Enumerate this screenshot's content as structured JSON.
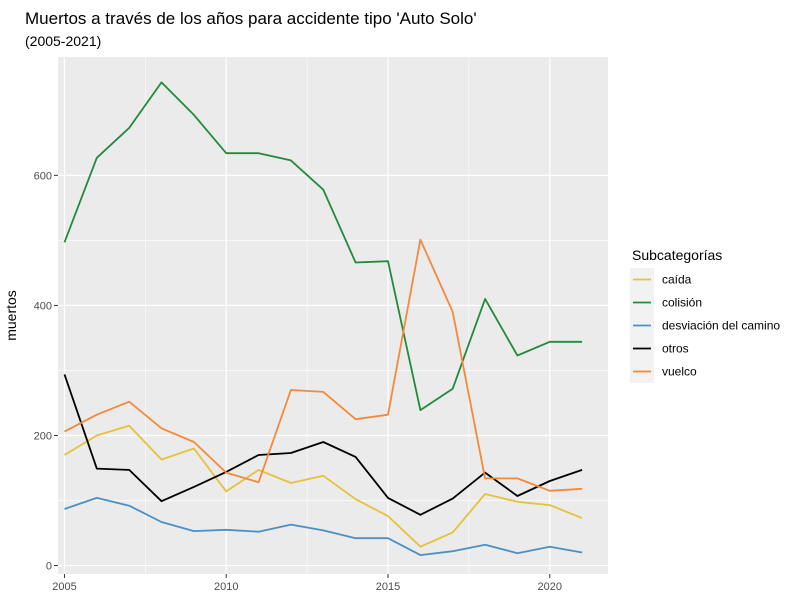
{
  "chart_data": {
    "type": "line",
    "title": "Muertos a través de los años para accidente tipo 'Auto Solo'",
    "subtitle": "(2005-2021)",
    "xlabel": "",
    "ylabel": "muertos",
    "x": [
      2005,
      2006,
      2007,
      2008,
      2009,
      2010,
      2011,
      2012,
      2013,
      2014,
      2015,
      2016,
      2017,
      2018,
      2019,
      2020,
      2021
    ],
    "xlim": [
      2004.8,
      2021.8
    ],
    "ylim": [
      -13,
      782
    ],
    "xticks": [
      2005,
      2010,
      2015,
      2020
    ],
    "yticks": [
      0,
      200,
      400,
      600
    ],
    "grid": true,
    "background": "#ebebeb",
    "legend": {
      "title": "Subcategorías",
      "position": "right"
    },
    "series": [
      {
        "name": "caída",
        "color": "#e6c13a",
        "values": [
          170,
          200,
          215,
          163,
          180,
          114,
          147,
          127,
          138,
          102,
          76,
          29,
          51,
          110,
          98,
          93,
          73
        ]
      },
      {
        "name": "colisión",
        "color": "#228b3a",
        "values": [
          497,
          627,
          673,
          743,
          693,
          634,
          634,
          623,
          578,
          466,
          468,
          239,
          272,
          410,
          323,
          344,
          344
        ]
      },
      {
        "name": "desviación del camino",
        "color": "#4a90c4",
        "values": [
          87,
          104,
          92,
          67,
          53,
          55,
          52,
          63,
          54,
          42,
          42,
          16,
          22,
          32,
          19,
          29,
          20
        ]
      },
      {
        "name": "otros",
        "color": "#000000",
        "values": [
          294,
          149,
          147,
          99,
          121,
          144,
          170,
          173,
          190,
          167,
          104,
          78,
          103,
          143,
          107,
          130,
          147
        ]
      },
      {
        "name": "vuelco",
        "color": "#f5893a",
        "values": [
          206,
          232,
          252,
          211,
          190,
          143,
          128,
          270,
          267,
          225,
          232,
          501,
          390,
          134,
          134,
          115,
          118
        ]
      }
    ]
  }
}
